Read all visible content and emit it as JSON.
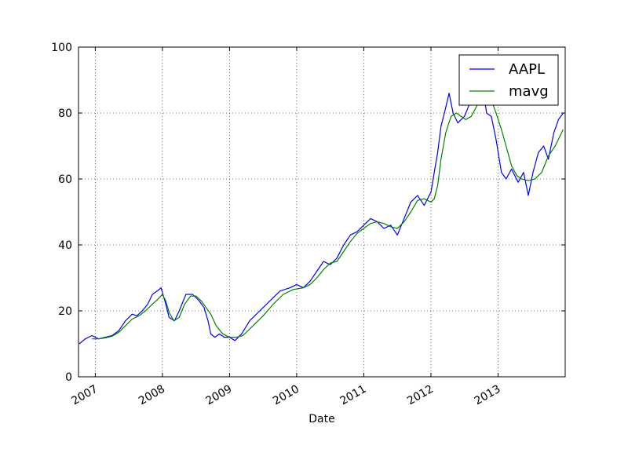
{
  "chart_data": {
    "type": "line",
    "title": "",
    "xlabel": "Date",
    "ylabel": "",
    "xlim": [
      2006.75,
      2014.0
    ],
    "ylim": [
      0,
      100
    ],
    "grid": true,
    "legend_position": "top-right",
    "x_ticks": [
      2007,
      2008,
      2009,
      2010,
      2011,
      2012,
      2013
    ],
    "x_tick_labels": [
      "2007",
      "2008",
      "2009",
      "2010",
      "2011",
      "2012",
      "2013"
    ],
    "y_ticks": [
      0,
      20,
      40,
      60,
      80,
      100
    ],
    "y_tick_labels": [
      "0",
      "20",
      "40",
      "60",
      "80",
      "100"
    ],
    "series": [
      {
        "name": "AAPL",
        "color": "#0000ff",
        "x": [
          2006.76,
          2006.85,
          2006.95,
          2007.05,
          2007.15,
          2007.25,
          2007.35,
          2007.45,
          2007.55,
          2007.62,
          2007.7,
          2007.78,
          2007.85,
          2007.92,
          2007.98,
          2008.05,
          2008.1,
          2008.18,
          2008.25,
          2008.35,
          2008.45,
          2008.55,
          2008.62,
          2008.68,
          2008.72,
          2008.78,
          2008.85,
          2008.92,
          2009.0,
          2009.08,
          2009.18,
          2009.3,
          2009.45,
          2009.6,
          2009.75,
          2009.9,
          2010.0,
          2010.1,
          2010.2,
          2010.3,
          2010.4,
          2010.5,
          2010.6,
          2010.7,
          2010.8,
          2010.9,
          2011.0,
          2011.1,
          2011.2,
          2011.3,
          2011.4,
          2011.5,
          2011.6,
          2011.7,
          2011.8,
          2011.9,
          2012.0,
          2012.05,
          2012.1,
          2012.15,
          2012.2,
          2012.27,
          2012.33,
          2012.4,
          2012.5,
          2012.6,
          2012.7,
          2012.77,
          2012.83,
          2012.9,
          2012.97,
          2013.05,
          2013.12,
          2013.2,
          2013.3,
          2013.38,
          2013.45,
          2013.52,
          2013.6,
          2013.68,
          2013.75,
          2013.83,
          2013.9,
          2013.97
        ],
        "y": [
          10,
          11.5,
          12.5,
          11.5,
          12,
          12.5,
          14,
          17,
          19,
          18.5,
          20,
          22,
          25,
          26,
          27,
          22,
          18,
          17,
          20,
          25,
          25,
          23,
          21,
          17,
          13,
          12,
          13,
          12,
          12,
          11,
          13,
          17,
          20,
          23,
          26,
          27,
          28,
          27,
          29,
          32,
          35,
          34,
          36,
          40,
          43,
          44,
          46,
          48,
          47,
          45,
          46,
          43,
          48,
          53,
          55,
          52,
          56,
          62,
          68,
          76,
          80,
          86,
          80,
          77,
          79,
          84,
          85,
          88,
          80,
          79,
          72,
          62,
          60,
          63,
          59,
          62,
          55,
          62,
          68,
          70,
          66,
          74,
          78,
          80
        ]
      },
      {
        "name": "mavg",
        "color": "#008000",
        "x": [
          2006.95,
          2007.05,
          2007.15,
          2007.25,
          2007.35,
          2007.45,
          2007.55,
          2007.65,
          2007.75,
          2007.85,
          2007.93,
          2008.0,
          2008.05,
          2008.1,
          2008.17,
          2008.25,
          2008.33,
          2008.42,
          2008.5,
          2008.58,
          2008.65,
          2008.72,
          2008.8,
          2008.9,
          2009.0,
          2009.1,
          2009.2,
          2009.35,
          2009.5,
          2009.65,
          2009.8,
          2009.95,
          2010.1,
          2010.2,
          2010.3,
          2010.4,
          2010.5,
          2010.6,
          2010.7,
          2010.8,
          2010.9,
          2011.0,
          2011.1,
          2011.2,
          2011.3,
          2011.4,
          2011.5,
          2011.6,
          2011.7,
          2011.8,
          2011.9,
          2012.0,
          2012.05,
          2012.1,
          2012.15,
          2012.22,
          2012.3,
          2012.38,
          2012.45,
          2012.52,
          2012.6,
          2012.68,
          2012.75,
          2012.82,
          2012.9,
          2012.97,
          2013.05,
          2013.12,
          2013.2,
          2013.28,
          2013.35,
          2013.45,
          2013.55,
          2013.65,
          2013.75,
          2013.85,
          2013.97
        ],
        "y": [
          11.5,
          11.5,
          11.8,
          12.3,
          13.5,
          15.5,
          17.5,
          18.5,
          20,
          22,
          23.5,
          25,
          23,
          19.5,
          17,
          18,
          22,
          24.5,
          24.5,
          23,
          21,
          19,
          15.5,
          13,
          12,
          12,
          12.5,
          15.5,
          18.5,
          22,
          25,
          26.5,
          27,
          28,
          30,
          32.5,
          34.5,
          35,
          38,
          41,
          43.5,
          45,
          46.5,
          47,
          46.5,
          45.5,
          45,
          47,
          50,
          53.5,
          54,
          53,
          54,
          58,
          66,
          74,
          79,
          80,
          79,
          78,
          79,
          82,
          85,
          87,
          84,
          80,
          75,
          70,
          64,
          61,
          60,
          59.5,
          60,
          62,
          67,
          70,
          75
        ]
      }
    ]
  }
}
